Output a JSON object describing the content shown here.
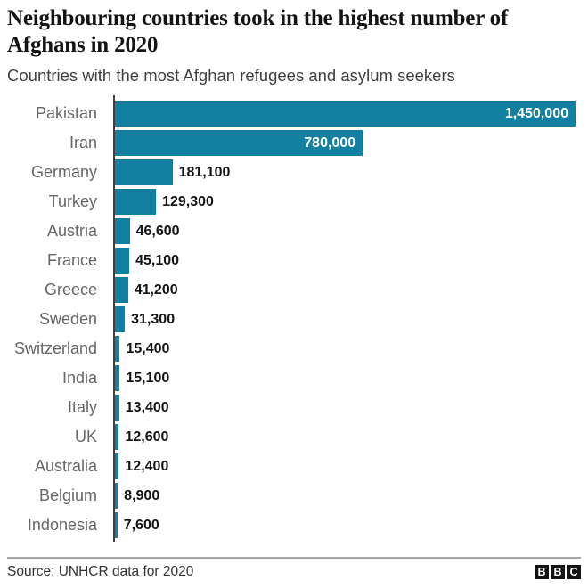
{
  "header": {
    "title": "Neighbouring countries took in the highest number of Afghans in 2020",
    "subtitle": "Countries with the most Afghan refugees and asylum seekers"
  },
  "chart_data": {
    "type": "bar",
    "orientation": "horizontal",
    "title": "Neighbouring countries took in the highest number of Afghans in 2020",
    "subtitle": "Countries with the most Afghan refugees and asylum seekers",
    "categories": [
      "Pakistan",
      "Iran",
      "Germany",
      "Turkey",
      "Austria",
      "France",
      "Greece",
      "Sweden",
      "Switzerland",
      "India",
      "Italy",
      "UK",
      "Australia",
      "Belgium",
      "Indonesia"
    ],
    "values": [
      1450000,
      780000,
      181100,
      129300,
      46600,
      45100,
      41200,
      31300,
      15400,
      15100,
      13400,
      12600,
      12400,
      8900,
      7600
    ],
    "value_labels": [
      "1,450,000",
      "780,000",
      "181,100",
      "129,300",
      "46,600",
      "45,100",
      "41,200",
      "31,300",
      "15,400",
      "15,100",
      "13,400",
      "12,600",
      "12,400",
      "8,900",
      "7,600"
    ],
    "xlim": [
      0,
      1450000
    ],
    "grid": false,
    "legend": "none",
    "bar_color": "#1380A1",
    "inside_label_threshold": 300000
  },
  "footer": {
    "source": "Source: UNHCR data for 2020",
    "logo": [
      "B",
      "B",
      "C"
    ]
  },
  "colors": {
    "bar": "#1380A1",
    "title_text": "#141414",
    "subtitle_text": "#404040",
    "category_label": "#666666",
    "value_inside": "#ffffff",
    "value_outside": "#141414",
    "axis_line": "#404040",
    "footer_rule": "#a6a6a6"
  }
}
